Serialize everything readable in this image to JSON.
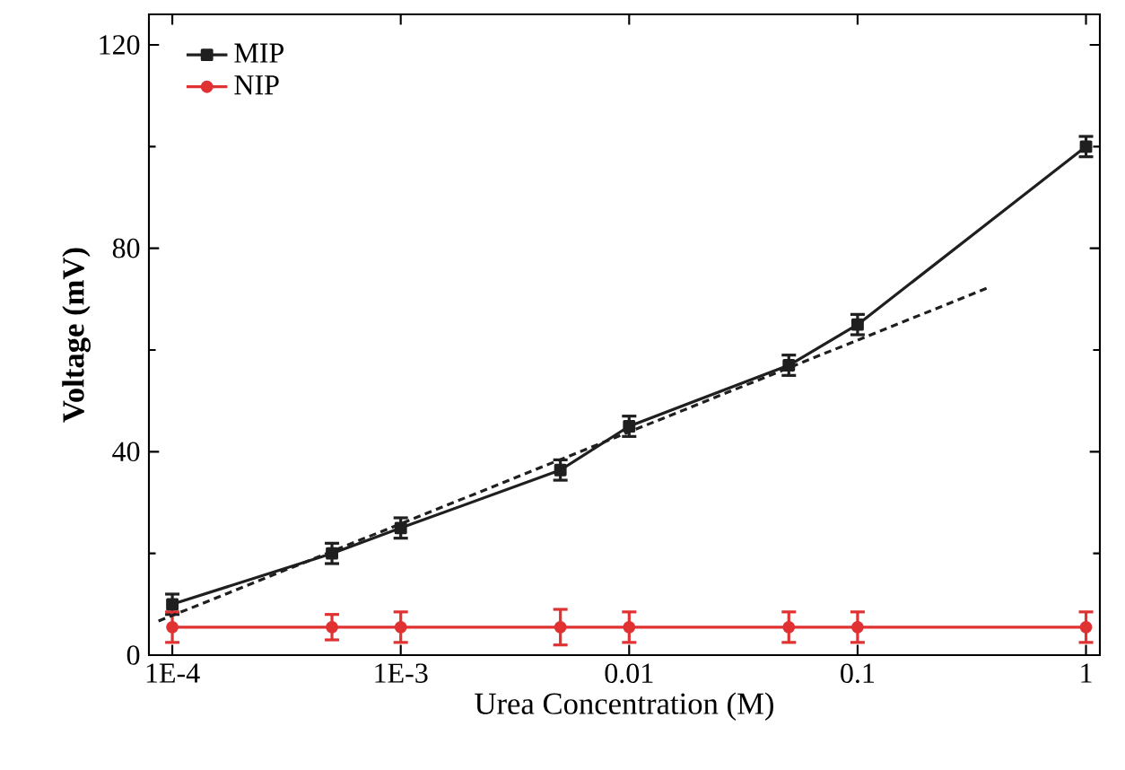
{
  "chart_data": {
    "type": "line",
    "xlabel": "Urea Concentration (M)",
    "ylabel": "Voltage (mV)",
    "log": "x",
    "xlim": [
      7.9e-05,
      1.15
    ],
    "ylim": [
      0,
      126
    ],
    "xticks": [
      {
        "value": 0.0001,
        "label": "1E-4"
      },
      {
        "value": 0.001,
        "label": "1E-3"
      },
      0.01,
      0.1,
      1
    ],
    "yticks": [
      0,
      40,
      80,
      120
    ],
    "x": [
      0.0001,
      0.0005,
      0.001,
      0.005,
      0.01,
      0.05,
      0.1,
      1
    ],
    "legend": "top left",
    "grid": false,
    "series": [
      {
        "name": "MIP",
        "color": "#1f1f1f",
        "marker": "square",
        "values": [
          10,
          20,
          25,
          36.4,
          45,
          57,
          65,
          100
        ],
        "errors": [
          2,
          2,
          2,
          2,
          2,
          2,
          2,
          2
        ]
      },
      {
        "name": "NIP",
        "color": "#e03232",
        "marker": "circle",
        "values": [
          5.5,
          5.5,
          5.5,
          5.5,
          5.5,
          5.5,
          5.5,
          5.5
        ],
        "errors": [
          3,
          2.5,
          3,
          3.5,
          3,
          3,
          3,
          3
        ]
      },
      {
        "type": "line",
        "color": "#1f1f1f",
        "line_style": "dashed",
        "marker": "none",
        "x": [
          8.7e-05,
          0.38
        ],
        "values": [
          6.7,
          72.4
        ]
      }
    ]
  }
}
